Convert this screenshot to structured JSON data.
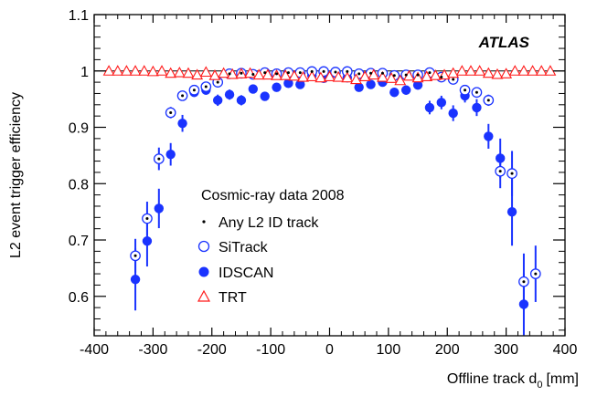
{
  "chart_data": {
    "type": "scatter",
    "experiment_label": "ATLAS",
    "title": "",
    "xlabel": "Offline track d",
    "xlabel_sub": "0",
    "xlabel_unit": "[mm]",
    "ylabel": "L2 event trigger efficiency",
    "xlim": [
      -400,
      400
    ],
    "ylim": [
      0.53,
      1.1
    ],
    "x_ticks": [
      -400,
      -300,
      -200,
      -100,
      0,
      100,
      200,
      300,
      400
    ],
    "y_ticks": [
      0.6,
      0.7,
      0.8,
      0.9,
      1,
      1.1
    ],
    "reference_line": 1,
    "legend": {
      "header": "Cosmic-ray data 2008",
      "position": "middle-left",
      "entries": [
        "Any L2 ID track",
        "SiTrack",
        "IDSCAN",
        "TRT"
      ]
    },
    "series": [
      {
        "name": "Any L2 ID track",
        "marker": "dot",
        "color": "#000000",
        "points": [
          {
            "x": -330,
            "y": 0.672,
            "err": 0.03
          },
          {
            "x": -310,
            "y": 0.738,
            "err": 0.03
          },
          {
            "x": -290,
            "y": 0.844,
            "err": 0.02
          },
          {
            "x": -270,
            "y": 0.926,
            "err": 0.01
          },
          {
            "x": -250,
            "y": 0.956,
            "err": 0.006
          },
          {
            "x": -230,
            "y": 0.966,
            "err": 0.005
          },
          {
            "x": -210,
            "y": 0.972,
            "err": 0.004
          },
          {
            "x": -190,
            "y": 0.98,
            "err": 0.004
          },
          {
            "x": -170,
            "y": 0.995,
            "err": 0.003
          },
          {
            "x": -150,
            "y": 0.996,
            "err": 0.003
          },
          {
            "x": -130,
            "y": 0.994,
            "err": 0.003
          },
          {
            "x": -110,
            "y": 0.997,
            "err": 0.002
          },
          {
            "x": -90,
            "y": 0.995,
            "err": 0.002
          },
          {
            "x": -70,
            "y": 0.997,
            "err": 0.002
          },
          {
            "x": -50,
            "y": 0.997,
            "err": 0.002
          },
          {
            "x": -30,
            "y": 0.999,
            "err": 0.001
          },
          {
            "x": -10,
            "y": 0.999,
            "err": 0.001
          },
          {
            "x": 10,
            "y": 0.998,
            "err": 0.001
          },
          {
            "x": 30,
            "y": 0.999,
            "err": 0.001
          },
          {
            "x": 50,
            "y": 0.995,
            "err": 0.002
          },
          {
            "x": 70,
            "y": 0.996,
            "err": 0.002
          },
          {
            "x": 90,
            "y": 0.996,
            "err": 0.002
          },
          {
            "x": 110,
            "y": 0.992,
            "err": 0.003
          },
          {
            "x": 130,
            "y": 0.993,
            "err": 0.003
          },
          {
            "x": 150,
            "y": 0.993,
            "err": 0.003
          },
          {
            "x": 170,
            "y": 0.997,
            "err": 0.002
          },
          {
            "x": 190,
            "y": 0.989,
            "err": 0.004
          },
          {
            "x": 210,
            "y": 0.985,
            "err": 0.005
          },
          {
            "x": 230,
            "y": 0.966,
            "err": 0.006
          },
          {
            "x": 250,
            "y": 0.962,
            "err": 0.008
          },
          {
            "x": 270,
            "y": 0.948,
            "err": 0.01
          },
          {
            "x": 290,
            "y": 0.822,
            "err": 0.03
          },
          {
            "x": 310,
            "y": 0.818,
            "err": 0.04
          },
          {
            "x": 330,
            "y": 0.626,
            "err": 0.05
          },
          {
            "x": 350,
            "y": 0.64,
            "err": 0.05
          }
        ]
      },
      {
        "name": "SiTrack",
        "marker": "open-circle",
        "color": "#1a33ff",
        "points": [
          {
            "x": -330,
            "y": 0.672,
            "err": 0.03
          },
          {
            "x": -310,
            "y": 0.738,
            "err": 0.03
          },
          {
            "x": -290,
            "y": 0.844,
            "err": 0.02
          },
          {
            "x": -270,
            "y": 0.926,
            "err": 0.01
          },
          {
            "x": -250,
            "y": 0.956,
            "err": 0.006
          },
          {
            "x": -230,
            "y": 0.966,
            "err": 0.005
          },
          {
            "x": -210,
            "y": 0.972,
            "err": 0.004
          },
          {
            "x": -190,
            "y": 0.98,
            "err": 0.004
          },
          {
            "x": -170,
            "y": 0.995,
            "err": 0.003
          },
          {
            "x": -150,
            "y": 0.996,
            "err": 0.003
          },
          {
            "x": -130,
            "y": 0.994,
            "err": 0.003
          },
          {
            "x": -110,
            "y": 0.997,
            "err": 0.002
          },
          {
            "x": -90,
            "y": 0.995,
            "err": 0.002
          },
          {
            "x": -70,
            "y": 0.997,
            "err": 0.002
          },
          {
            "x": -50,
            "y": 0.997,
            "err": 0.002
          },
          {
            "x": -30,
            "y": 0.999,
            "err": 0.001
          },
          {
            "x": -10,
            "y": 0.999,
            "err": 0.001
          },
          {
            "x": 10,
            "y": 0.998,
            "err": 0.001
          },
          {
            "x": 30,
            "y": 0.999,
            "err": 0.001
          },
          {
            "x": 50,
            "y": 0.995,
            "err": 0.002
          },
          {
            "x": 70,
            "y": 0.996,
            "err": 0.002
          },
          {
            "x": 90,
            "y": 0.996,
            "err": 0.002
          },
          {
            "x": 110,
            "y": 0.992,
            "err": 0.003
          },
          {
            "x": 130,
            "y": 0.993,
            "err": 0.003
          },
          {
            "x": 150,
            "y": 0.993,
            "err": 0.003
          },
          {
            "x": 170,
            "y": 0.997,
            "err": 0.002
          },
          {
            "x": 190,
            "y": 0.989,
            "err": 0.004
          },
          {
            "x": 210,
            "y": 0.985,
            "err": 0.005
          },
          {
            "x": 230,
            "y": 0.966,
            "err": 0.006
          },
          {
            "x": 250,
            "y": 0.962,
            "err": 0.008
          },
          {
            "x": 270,
            "y": 0.948,
            "err": 0.01
          },
          {
            "x": 290,
            "y": 0.822,
            "err": 0.03
          },
          {
            "x": 310,
            "y": 0.818,
            "err": 0.04
          },
          {
            "x": 330,
            "y": 0.626,
            "err": 0.05
          },
          {
            "x": 350,
            "y": 0.64,
            "err": 0.05
          }
        ]
      },
      {
        "name": "IDSCAN",
        "marker": "filled-circle",
        "color": "#1a33ff",
        "points": [
          {
            "x": -330,
            "y": 0.63,
            "err": 0.055
          },
          {
            "x": -310,
            "y": 0.698,
            "err": 0.045
          },
          {
            "x": -290,
            "y": 0.756,
            "err": 0.035
          },
          {
            "x": -270,
            "y": 0.852,
            "err": 0.02
          },
          {
            "x": -250,
            "y": 0.907,
            "err": 0.015
          },
          {
            "x": -230,
            "y": 0.962,
            "err": 0.008
          },
          {
            "x": -210,
            "y": 0.966,
            "err": 0.008
          },
          {
            "x": -190,
            "y": 0.948,
            "err": 0.01
          },
          {
            "x": -170,
            "y": 0.958,
            "err": 0.009
          },
          {
            "x": -150,
            "y": 0.948,
            "err": 0.009
          },
          {
            "x": -130,
            "y": 0.968,
            "err": 0.008
          },
          {
            "x": -110,
            "y": 0.955,
            "err": 0.008
          },
          {
            "x": -90,
            "y": 0.971,
            "err": 0.007
          },
          {
            "x": -70,
            "y": 0.978,
            "err": 0.006
          },
          {
            "x": -50,
            "y": 0.976,
            "err": 0.006
          },
          {
            "x": -30,
            "y": 0.992,
            "err": 0.004
          },
          {
            "x": -10,
            "y": 0.987,
            "err": 0.004
          },
          {
            "x": 10,
            "y": 0.996,
            "err": 0.003
          },
          {
            "x": 30,
            "y": 0.988,
            "err": 0.004
          },
          {
            "x": 50,
            "y": 0.971,
            "err": 0.006
          },
          {
            "x": 70,
            "y": 0.976,
            "err": 0.006
          },
          {
            "x": 90,
            "y": 0.98,
            "err": 0.006
          },
          {
            "x": 110,
            "y": 0.962,
            "err": 0.008
          },
          {
            "x": 130,
            "y": 0.966,
            "err": 0.008
          },
          {
            "x": 150,
            "y": 0.975,
            "err": 0.008
          },
          {
            "x": 170,
            "y": 0.935,
            "err": 0.012
          },
          {
            "x": 190,
            "y": 0.944,
            "err": 0.012
          },
          {
            "x": 210,
            "y": 0.925,
            "err": 0.014
          },
          {
            "x": 230,
            "y": 0.956,
            "err": 0.012
          },
          {
            "x": 250,
            "y": 0.935,
            "err": 0.015
          },
          {
            "x": 270,
            "y": 0.884,
            "err": 0.022
          },
          {
            "x": 290,
            "y": 0.845,
            "err": 0.035
          },
          {
            "x": 310,
            "y": 0.75,
            "err": 0.06
          },
          {
            "x": 330,
            "y": 0.586,
            "err": 0.055
          }
        ]
      },
      {
        "name": "TRT",
        "marker": "open-triangle",
        "color": "#ff1a1a",
        "points": [
          {
            "x": -375,
            "y": 1.0
          },
          {
            "x": -360,
            "y": 1.0
          },
          {
            "x": -345,
            "y": 1.0
          },
          {
            "x": -330,
            "y": 1.0
          },
          {
            "x": -315,
            "y": 1.0
          },
          {
            "x": -300,
            "y": 0.999
          },
          {
            "x": -285,
            "y": 1.0
          },
          {
            "x": -270,
            "y": 0.996
          },
          {
            "x": -255,
            "y": 0.997
          },
          {
            "x": -240,
            "y": 0.996
          },
          {
            "x": -225,
            "y": 0.993
          },
          {
            "x": -210,
            "y": 0.998
          },
          {
            "x": -195,
            "y": 0.992
          },
          {
            "x": -180,
            "y": 0.996
          },
          {
            "x": -165,
            "y": 0.994
          },
          {
            "x": -150,
            "y": 0.995
          },
          {
            "x": -135,
            "y": 0.996
          },
          {
            "x": -120,
            "y": 0.993
          },
          {
            "x": -105,
            "y": 0.993
          },
          {
            "x": -90,
            "y": 0.992
          },
          {
            "x": -75,
            "y": 0.992
          },
          {
            "x": -60,
            "y": 0.991
          },
          {
            "x": -45,
            "y": 0.989
          },
          {
            "x": -30,
            "y": 0.99
          },
          {
            "x": -15,
            "y": 0.988
          },
          {
            "x": 0,
            "y": 0.99
          },
          {
            "x": 15,
            "y": 0.989
          },
          {
            "x": 30,
            "y": 0.988
          },
          {
            "x": 45,
            "y": 0.985
          },
          {
            "x": 60,
            "y": 0.99
          },
          {
            "x": 75,
            "y": 0.993
          },
          {
            "x": 90,
            "y": 0.989
          },
          {
            "x": 105,
            "y": 0.987
          },
          {
            "x": 120,
            "y": 0.983
          },
          {
            "x": 135,
            "y": 0.991
          },
          {
            "x": 150,
            "y": 0.988
          },
          {
            "x": 165,
            "y": 0.99
          },
          {
            "x": 180,
            "y": 0.992
          },
          {
            "x": 195,
            "y": 0.993
          },
          {
            "x": 210,
            "y": 0.996
          },
          {
            "x": 225,
            "y": 1.0
          },
          {
            "x": 240,
            "y": 1.0
          },
          {
            "x": 255,
            "y": 1.0
          },
          {
            "x": 270,
            "y": 0.996
          },
          {
            "x": 285,
            "y": 0.994
          },
          {
            "x": 300,
            "y": 0.995
          },
          {
            "x": 315,
            "y": 1.0
          },
          {
            "x": 330,
            "y": 1.0
          },
          {
            "x": 345,
            "y": 1.0
          },
          {
            "x": 360,
            "y": 1.0
          },
          {
            "x": 375,
            "y": 1.0
          }
        ]
      }
    ]
  }
}
